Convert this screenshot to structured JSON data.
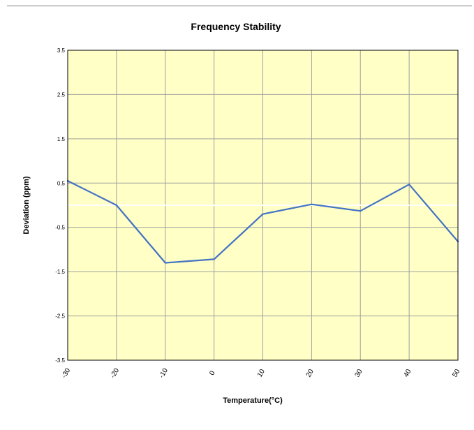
{
  "chart_data": {
    "type": "line",
    "title": "Frequency Stability",
    "xlabel": "Temperature(°C)",
    "ylabel": "Deviation (ppm)",
    "x": [
      -30,
      -20,
      -10,
      0,
      10,
      20,
      30,
      40,
      50
    ],
    "x_tick_labels": [
      "-30",
      "-20",
      "-10",
      "0",
      "10",
      "20",
      "30",
      "40",
      "50"
    ],
    "y_tick_values": [
      3.5,
      2.5,
      1.5,
      0.5,
      -0.5,
      -1.5,
      -2.5,
      -3.5
    ],
    "y_tick_labels": [
      "3.5",
      "2.5",
      "1.5",
      "0.5",
      "-0.5",
      "-1.5",
      "-2.5",
      "-3.5"
    ],
    "xlim": [
      -30,
      50
    ],
    "ylim": [
      -3.5,
      3.5
    ],
    "grid": true,
    "series": [
      {
        "values": [
          0.55,
          0.0,
          -1.3,
          -1.22,
          -0.2,
          0.02,
          -0.13,
          0.47,
          -0.82
        ]
      }
    ],
    "colors": {
      "plot_background": "#ffffc6",
      "grid": "#a0a0a0",
      "zero_line": "#ffffff",
      "series_line": "#4472c4",
      "plot_border": "#000000"
    }
  }
}
